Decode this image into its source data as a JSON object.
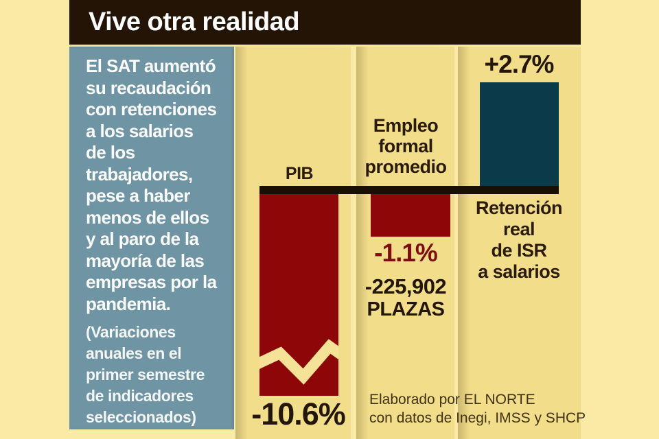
{
  "header": {
    "title": "Vive otra realidad"
  },
  "sidebar": {
    "main_lines": [
      "El SAT aumentó",
      "su recaudación",
      "con retenciones",
      "a los salarios",
      "de los",
      "trabajadores,",
      "pese a haber",
      "menos de ellos",
      "y al paro de la",
      "mayoría de las",
      "empresas por la",
      "pandemia."
    ],
    "note_lines": [
      "(Variaciones",
      "anuales en el",
      "primer semestre",
      "de indicadores",
      "seleccionados)"
    ]
  },
  "chart_data": {
    "type": "bar",
    "title": "Vive otra realidad",
    "note": "(Variaciones anuales en el primer semestre de indicadores seleccionados)",
    "unit": "% annual variation, first semester",
    "categories": [
      "PIB",
      "Empleo formal promedio",
      "Retención real de ISR a salarios"
    ],
    "values": [
      -10.6,
      -1.1,
      2.7
    ],
    "value_labels": [
      "-10.6%",
      "-1.1%",
      "+2.7%"
    ],
    "category_lines": [
      [
        "PIB"
      ],
      [
        "Empleo",
        "formal",
        "promedio"
      ],
      [
        "Retención",
        "real",
        "de ISR",
        "a salarios"
      ]
    ],
    "extra_annotation": {
      "category_index": 1,
      "lines": [
        "-225,902",
        "PLAZAS"
      ]
    },
    "axis_break_category_index": 0,
    "baseline_value": 0,
    "bar_colors": [
      "#8E0708",
      "#8E0708",
      "#0B3A4B"
    ],
    "grid": false,
    "legend_position": "none"
  },
  "source": {
    "line1": "Elaborado por EL NORTE",
    "line2": "con datos de Inegi, IMSS y SHCP"
  },
  "colors": {
    "background": "#F9EAA6",
    "column_strip": "#F1DD8A",
    "titlebar_bg": "#231405",
    "title_text": "#FFFFFF",
    "sidebar_bg": "#6F94A3",
    "sidebar_text": "#FBFCFB",
    "negative_bar": "#8E0708",
    "positive_bar": "#0B3A4B",
    "negative_value_text": "#7E0D10",
    "dark_text": "#2B1B0B",
    "baseline": "#190F02",
    "axis_break_stroke": "#F4E297"
  }
}
